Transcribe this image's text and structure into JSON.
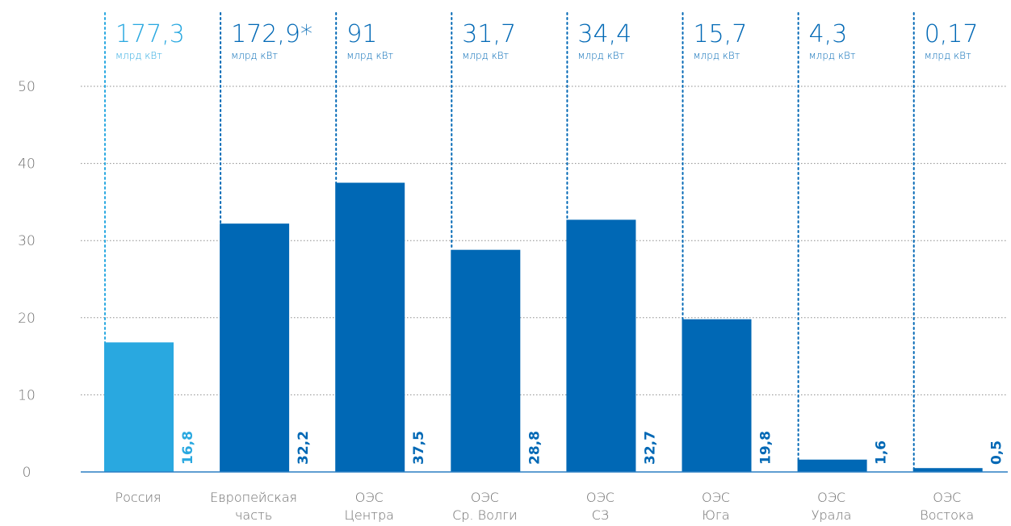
{
  "colors": {
    "primary": "#0068B5",
    "highlight": "#29A8E0",
    "axis": "#2A7FC4",
    "grid": "#8C8C8C",
    "tick_text": "#707070",
    "category_text": "#6D6D6D"
  },
  "chart_data": {
    "type": "bar",
    "ylim": [
      0,
      50
    ],
    "yticks": [
      "0",
      "10",
      "20",
      "30",
      "40",
      "50"
    ],
    "grid": true,
    "categories": [
      [
        "Россия"
      ],
      [
        "Европейская",
        "часть"
      ],
      [
        "ОЭС",
        "Центра"
      ],
      [
        "ОЭС",
        "Ср. Волги"
      ],
      [
        "ОЭС",
        "СЗ"
      ],
      [
        "ОЭС",
        "Юга"
      ],
      [
        "ОЭС",
        "Урала"
      ],
      [
        "ОЭС",
        "Востока"
      ]
    ],
    "values": [
      16.8,
      32.2,
      37.5,
      28.8,
      32.7,
      19.8,
      1.6,
      0.5
    ],
    "value_labels": [
      "16,8",
      "32,2",
      "37,5",
      "28,8",
      "32,7",
      "19,8",
      "1,6",
      "0,5"
    ],
    "totals": [
      "177,3",
      "172,9*",
      "91",
      "31,7",
      "34,4",
      "15,7",
      "4,3",
      "0,17"
    ],
    "total_unit": "млрд кВт",
    "highlight_index": 0
  }
}
